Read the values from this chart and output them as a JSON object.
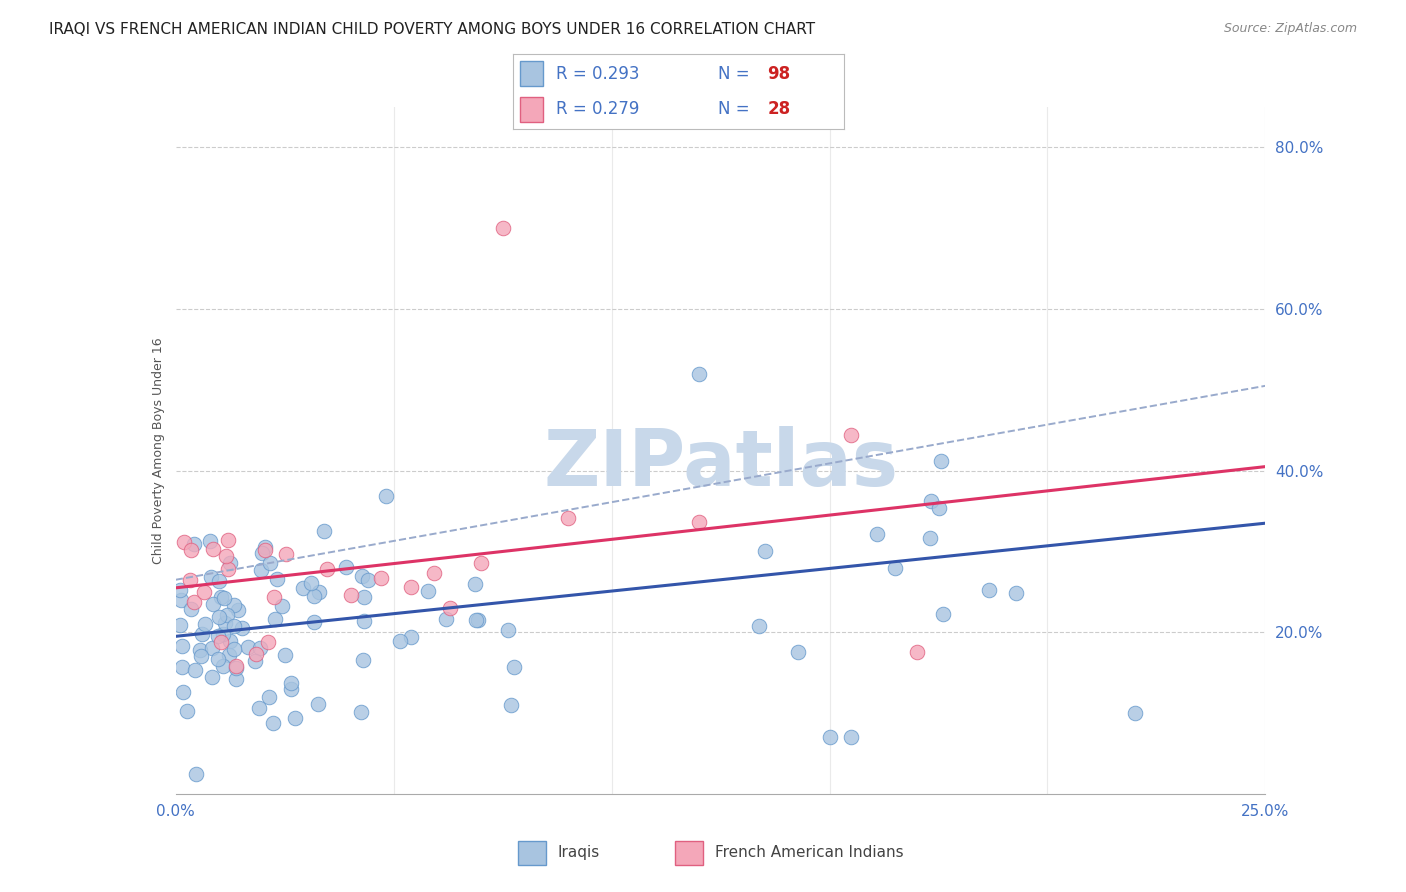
{
  "title": "IRAQI VS FRENCH AMERICAN INDIAN CHILD POVERTY AMONG BOYS UNDER 16 CORRELATION CHART",
  "source": "Source: ZipAtlas.com",
  "ylabel": "Child Poverty Among Boys Under 16",
  "xlim": [
    0.0,
    0.25
  ],
  "ylim": [
    0.0,
    0.85
  ],
  "xticks": [
    0.0,
    0.05,
    0.1,
    0.15,
    0.2,
    0.25
  ],
  "yticks": [
    0.0,
    0.2,
    0.4,
    0.6,
    0.8
  ],
  "ytick_labels": [
    "",
    "20.0%",
    "40.0%",
    "60.0%",
    "80.0%"
  ],
  "xtick_labels": [
    "0.0%",
    "",
    "",
    "",
    "",
    "25.0%"
  ],
  "series_iraqi_color": "#a8c4e0",
  "series_iraqi_edge": "#6699cc",
  "series_french_color": "#f4a7b9",
  "series_french_edge": "#e06080",
  "trendline_iraqi_color": "#3355aa",
  "trendline_french_color": "#dd3366",
  "trendline_dashed_color": "#99aacc",
  "trendline_iraqi": [
    0.0,
    0.195,
    0.25,
    0.335
  ],
  "trendline_french": [
    0.0,
    0.255,
    0.25,
    0.405
  ],
  "trendline_dashed": [
    0.0,
    0.265,
    0.25,
    0.505
  ],
  "watermark": "ZIPatlas",
  "watermark_color": "#c8d8ea",
  "background_color": "#ffffff",
  "grid_color": "#cccccc",
  "axis_color": "#4472c4",
  "title_fontsize": 11,
  "label_fontsize": 9,
  "tick_fontsize": 11,
  "legend_R1": "R = 0.293",
  "legend_N1": "N = 98",
  "legend_R2": "R = 0.279",
  "legend_N2": "N = 28",
  "bottom_label1": "Iraqis",
  "bottom_label2": "French American Indians"
}
